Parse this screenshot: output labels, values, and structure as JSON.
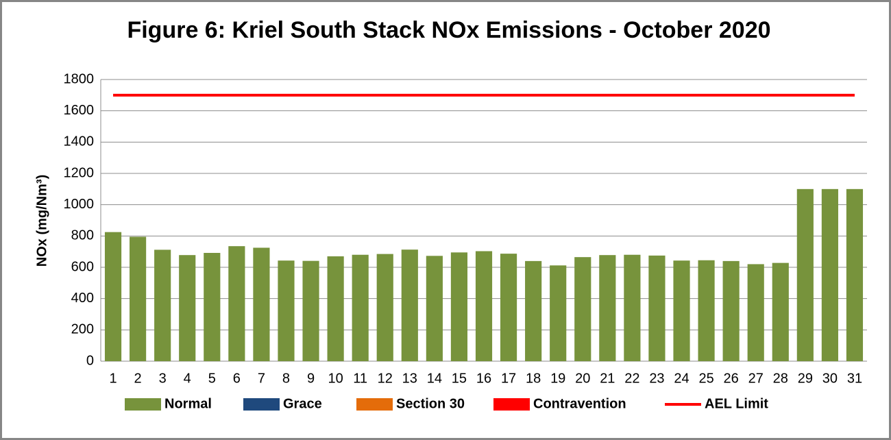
{
  "chart_data": {
    "type": "bar",
    "title": "Figure 6: Kriel South Stack NOx Emissions -  October 2020",
    "y_label": "NOx (mg/Nm³)",
    "categories": [
      "1",
      "2",
      "3",
      "4",
      "5",
      "6",
      "7",
      "8",
      "9",
      "10",
      "11",
      "12",
      "13",
      "14",
      "15",
      "16",
      "17",
      "18",
      "19",
      "20",
      "21",
      "22",
      "23",
      "24",
      "25",
      "26",
      "27",
      "28",
      "29",
      "30",
      "31"
    ],
    "series": [
      {
        "name": "Normal",
        "type": "bar",
        "color": "#77933c",
        "values": [
          825,
          795,
          712,
          678,
          692,
          735,
          725,
          643,
          641,
          670,
          680,
          685,
          713,
          673,
          695,
          703,
          687,
          640,
          612,
          665,
          678,
          680,
          675,
          643,
          645,
          640,
          620,
          628,
          1100,
          1100,
          1100
        ]
      },
      {
        "name": "Grace",
        "type": "bar",
        "color": "#1f497d",
        "values": [
          null,
          null,
          null,
          null,
          null,
          null,
          null,
          null,
          null,
          null,
          null,
          null,
          null,
          null,
          null,
          null,
          null,
          null,
          null,
          null,
          null,
          null,
          null,
          null,
          null,
          null,
          null,
          null,
          null,
          null,
          null
        ]
      },
      {
        "name": "Section 30",
        "type": "bar",
        "color": "#e46c0a",
        "values": [
          null,
          null,
          null,
          null,
          null,
          null,
          null,
          null,
          null,
          null,
          null,
          null,
          null,
          null,
          null,
          null,
          null,
          null,
          null,
          null,
          null,
          null,
          null,
          null,
          null,
          null,
          null,
          null,
          null,
          null,
          null
        ]
      },
      {
        "name": "Contravention",
        "type": "bar",
        "color": "#ff0000",
        "values": [
          null,
          null,
          null,
          null,
          null,
          null,
          null,
          null,
          null,
          null,
          null,
          null,
          null,
          null,
          null,
          null,
          null,
          null,
          null,
          null,
          null,
          null,
          null,
          null,
          null,
          null,
          null,
          null,
          null,
          null,
          null
        ]
      },
      {
        "name": "AEL Limit",
        "type": "line",
        "color": "#ff0000",
        "values": [
          1700,
          1700,
          1700,
          1700,
          1700,
          1700,
          1700,
          1700,
          1700,
          1700,
          1700,
          1700,
          1700,
          1700,
          1700,
          1700,
          1700,
          1700,
          1700,
          1700,
          1700,
          1700,
          1700,
          1700,
          1700,
          1700,
          1700,
          1700,
          1700,
          1700,
          1700
        ]
      }
    ],
    "ylim": [
      0,
      1800
    ],
    "yticks": [
      0,
      200,
      400,
      600,
      800,
      1000,
      1200,
      1400,
      1600,
      1800
    ],
    "grid": true,
    "legend": "bottom"
  }
}
